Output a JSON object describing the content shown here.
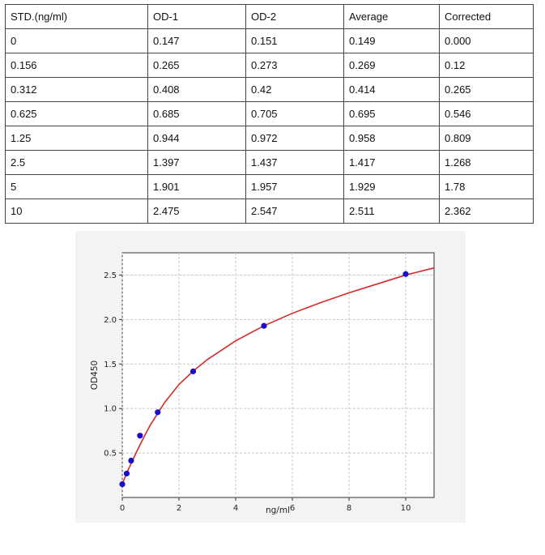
{
  "table": {
    "headers": [
      "STD.(ng/ml)",
      "OD-1",
      "OD-2",
      "Average",
      "Corrected"
    ],
    "rows": [
      [
        "0",
        "0.147",
        "0.151",
        "0.149",
        "0.000"
      ],
      [
        "0.156",
        "0.265",
        "0.273",
        "0.269",
        "0.12"
      ],
      [
        "0.312",
        "0.408",
        "0.42",
        "0.414",
        "0.265"
      ],
      [
        "0.625",
        "0.685",
        "0.705",
        "0.695",
        "0.546"
      ],
      [
        "1.25",
        "0.944",
        "0.972",
        "0.958",
        "0.809"
      ],
      [
        "2.5",
        "1.397",
        "1.437",
        "1.417",
        "1.268"
      ],
      [
        "5",
        "1.901",
        "1.957",
        "1.929",
        "1.78"
      ],
      [
        "10",
        "2.475",
        "2.547",
        "2.511",
        "2.362"
      ]
    ]
  },
  "chart_data": {
    "type": "scatter",
    "title": "",
    "xlabel": "ng/ml",
    "ylabel": "OD450",
    "xlim": [
      0,
      11
    ],
    "ylim": [
      0,
      2.75
    ],
    "xticks": [
      "0",
      "2",
      "4",
      "6",
      "8",
      "10"
    ],
    "yticks": [
      "0.5",
      "1.0",
      "1.5",
      "2.0",
      "2.5"
    ],
    "grid": true,
    "series": [
      {
        "type": "scatter",
        "x": [
          0,
          0.156,
          0.312,
          0.625,
          1.25,
          2.5,
          5,
          10
        ],
        "y": [
          0.149,
          0.269,
          0.414,
          0.695,
          0.958,
          1.417,
          1.929,
          2.511
        ],
        "color": "#1a0fc8"
      },
      {
        "type": "line",
        "x": [
          0,
          0.1,
          0.25,
          0.5,
          0.75,
          1,
          1.5,
          2,
          2.5,
          3,
          4,
          5,
          6,
          7,
          8,
          9,
          10,
          11
        ],
        "y": [
          0.15,
          0.23,
          0.34,
          0.51,
          0.67,
          0.82,
          1.07,
          1.27,
          1.42,
          1.55,
          1.76,
          1.93,
          2.07,
          2.19,
          2.3,
          2.4,
          2.5,
          2.58
        ],
        "color": "#d42a2a"
      }
    ]
  }
}
